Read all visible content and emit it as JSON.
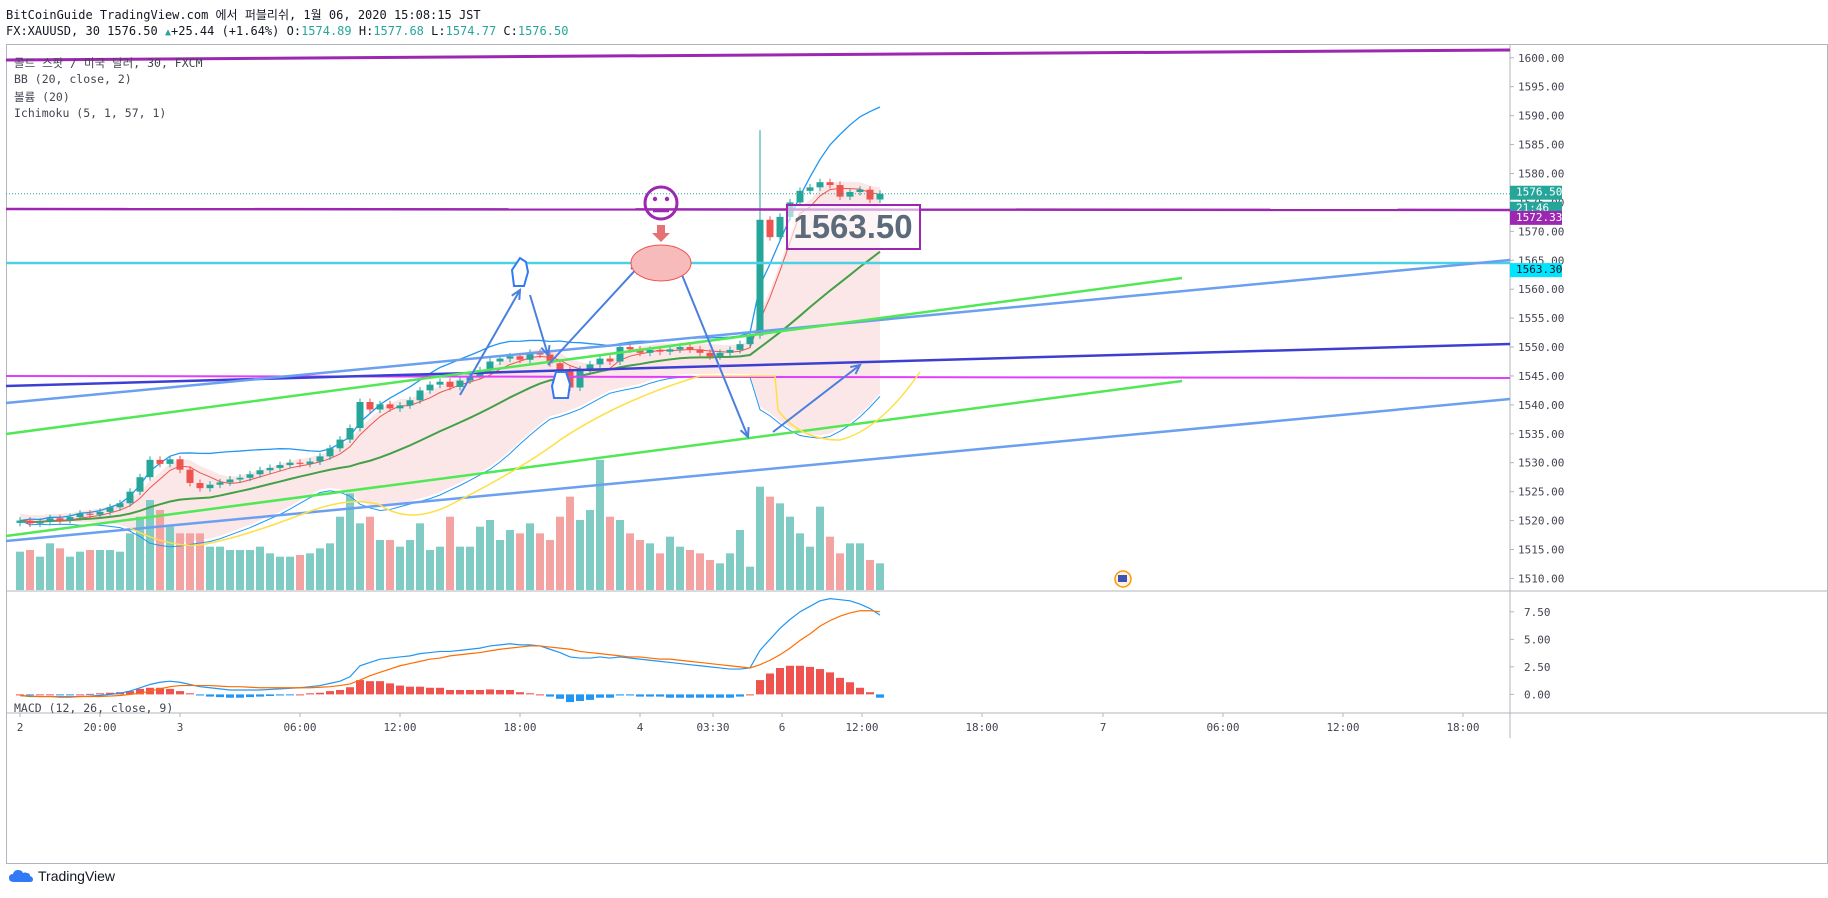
{
  "header": {
    "line1": "BitCoinGuide TradingView.com 에서 퍼블리쉬, 1월 06, 2020 15:08:15 JST",
    "symbol": "FX:XAUUSD, 30",
    "last": "1576.50",
    "change": "+25.44 (+1.64%)",
    "o_label": "O:",
    "o": "1574.89",
    "h_label": "H:",
    "h": "1577.68",
    "l_label": "L:",
    "l": "1574.77",
    "c_label": "C:",
    "c": "1576.50"
  },
  "legend": {
    "title": "골드 스팟 / 미국 달러, 30, FXCM",
    "bb": "BB (20, close, 2)",
    "volume": "볼륨 (20)",
    "ichimoku": "Ichimoku (5, 1, 57, 1)",
    "macd": "MACD (12, 26, close, 9)"
  },
  "badges": {
    "price": "1576.50",
    "countdown": "21:46",
    "level1": "1572.33",
    "level2": "1563.30"
  },
  "annotation_text": "1563.50",
  "logo_text": "TradingView",
  "colors": {
    "up": "#26a69a",
    "down": "#ef5350",
    "purple": "#9c27b0",
    "cyan": "#00bcd4",
    "blue": "#3179f5"
  },
  "chart_data": [
    {
      "type": "candlestick",
      "title": "골드 스팟 / 미국 달러, 30, FXCM",
      "ylim": [
        1508,
        1601
      ],
      "y_ticks": [
        1510,
        1515,
        1520,
        1525,
        1530,
        1535,
        1540,
        1545,
        1550,
        1555,
        1560,
        1565,
        1570,
        1575,
        1580,
        1585,
        1590,
        1595,
        1600
      ],
      "x_tick_labels": [
        "2",
        "20:00",
        "3",
        "06:00",
        "12:00",
        "18:00",
        "4",
        "03:30",
        "6",
        "12:00",
        "18:00",
        "7",
        "06:00",
        "12:00",
        "18:00"
      ],
      "close": [
        1520.0,
        1519.5,
        1519.8,
        1520.4,
        1520.1,
        1520.6,
        1521.2,
        1521.0,
        1521.5,
        1522.3,
        1523.0,
        1525.0,
        1527.5,
        1530.5,
        1529.8,
        1530.6,
        1528.8,
        1526.5,
        1525.6,
        1526.2,
        1526.6,
        1527.1,
        1527.4,
        1528.0,
        1528.7,
        1529.1,
        1529.6,
        1530.0,
        1529.8,
        1530.2,
        1531.1,
        1532.5,
        1534.0,
        1536.0,
        1540.5,
        1539.2,
        1540.1,
        1539.4,
        1539.9,
        1540.8,
        1542.5,
        1543.5,
        1544.0,
        1543.1,
        1544.2,
        1545.0,
        1546.0,
        1547.5,
        1548.0,
        1548.4,
        1547.8,
        1549.0,
        1548.7,
        1547.2,
        1546.0,
        1543.0,
        1546.1,
        1547.0,
        1548.0,
        1547.5,
        1550.0,
        1549.6,
        1549.0,
        1549.5,
        1549.2,
        1549.6,
        1550.0,
        1549.6,
        1549.0,
        1548.4,
        1549.0,
        1549.5,
        1550.5,
        1552.0,
        1572.0,
        1569.0,
        1572.5,
        1575.0,
        1577.0,
        1577.6,
        1578.5,
        1578.0,
        1576.0,
        1576.8,
        1577.2,
        1575.5,
        1576.5
      ],
      "volume": [
        11.5,
        12,
        10,
        14,
        12.5,
        10,
        11.5,
        12,
        12,
        12,
        11.5,
        17,
        22,
        27,
        24,
        19,
        17,
        17,
        17,
        13,
        13,
        12,
        12,
        12,
        13,
        11,
        10,
        10,
        10.5,
        11,
        12.5,
        14,
        22,
        29,
        20,
        22,
        15,
        15,
        13,
        15,
        20,
        12,
        13,
        22,
        13,
        13,
        19,
        21,
        15,
        18,
        17,
        20,
        17,
        15,
        22,
        28,
        21,
        24,
        39,
        22,
        21,
        17,
        15,
        14,
        11,
        16,
        13,
        12,
        11,
        9,
        8,
        11,
        18,
        7,
        31,
        28,
        26,
        22,
        17,
        13,
        25,
        16,
        11,
        14,
        14,
        9,
        8
      ]
    },
    {
      "type": "line",
      "title": "MACD (12, 26, close, 9)",
      "ylim": [
        -1.6,
        9.3
      ],
      "y_ticks": [
        0.0,
        2.5,
        5.0,
        7.5
      ],
      "macd": [
        -0.1,
        -0.2,
        -0.2,
        -0.2,
        -0.25,
        -0.25,
        -0.2,
        -0.15,
        -0.1,
        0.0,
        0.1,
        0.3,
        0.6,
        0.9,
        1.1,
        1.2,
        1.1,
        0.9,
        0.7,
        0.6,
        0.5,
        0.4,
        0.4,
        0.4,
        0.4,
        0.45,
        0.5,
        0.55,
        0.6,
        0.7,
        0.8,
        1.0,
        1.2,
        1.6,
        2.6,
        2.9,
        3.2,
        3.3,
        3.4,
        3.5,
        3.7,
        3.8,
        3.9,
        3.9,
        4.0,
        4.1,
        4.2,
        4.4,
        4.5,
        4.6,
        4.5,
        4.5,
        4.4,
        4.1,
        3.8,
        3.4,
        3.3,
        3.3,
        3.4,
        3.3,
        3.4,
        3.3,
        3.2,
        3.1,
        3.0,
        2.9,
        2.8,
        2.7,
        2.6,
        2.5,
        2.4,
        2.3,
        2.3,
        2.4,
        4.0,
        5.0,
        6.0,
        6.8,
        7.5,
        8.0,
        8.5,
        8.7,
        8.6,
        8.5,
        8.2,
        7.8,
        7.2
      ],
      "signal": [
        -0.1,
        -0.15,
        -0.2,
        -0.2,
        -0.2,
        -0.2,
        -0.2,
        -0.2,
        -0.2,
        -0.15,
        -0.1,
        0.0,
        0.1,
        0.3,
        0.5,
        0.7,
        0.8,
        0.8,
        0.8,
        0.8,
        0.75,
        0.7,
        0.7,
        0.65,
        0.6,
        0.6,
        0.6,
        0.6,
        0.6,
        0.6,
        0.65,
        0.7,
        0.8,
        0.95,
        1.3,
        1.7,
        2.0,
        2.3,
        2.6,
        2.8,
        3.0,
        3.2,
        3.3,
        3.5,
        3.6,
        3.7,
        3.8,
        3.95,
        4.1,
        4.2,
        4.3,
        4.4,
        4.4,
        4.3,
        4.2,
        4.1,
        3.9,
        3.8,
        3.7,
        3.6,
        3.5,
        3.4,
        3.4,
        3.3,
        3.2,
        3.2,
        3.1,
        3.0,
        2.9,
        2.8,
        2.7,
        2.6,
        2.5,
        2.4,
        2.7,
        3.1,
        3.6,
        4.2,
        4.9,
        5.5,
        6.2,
        6.7,
        7.1,
        7.4,
        7.6,
        7.6,
        7.5
      ],
      "histogram": [
        0.0,
        -0.05,
        0.0,
        0.0,
        -0.05,
        -0.05,
        0.0,
        0.05,
        0.1,
        0.15,
        0.2,
        0.3,
        0.5,
        0.6,
        0.6,
        0.5,
        0.3,
        0.1,
        -0.1,
        -0.2,
        -0.25,
        -0.3,
        -0.3,
        -0.25,
        -0.2,
        -0.15,
        -0.1,
        -0.05,
        0.0,
        0.1,
        0.15,
        0.3,
        0.4,
        0.65,
        1.3,
        1.2,
        1.2,
        1.0,
        0.8,
        0.7,
        0.7,
        0.6,
        0.6,
        0.4,
        0.4,
        0.4,
        0.4,
        0.45,
        0.4,
        0.4,
        0.2,
        0.1,
        0.0,
        -0.2,
        -0.4,
        -0.7,
        -0.6,
        -0.5,
        -0.3,
        -0.3,
        -0.1,
        -0.1,
        -0.2,
        -0.2,
        -0.2,
        -0.3,
        -0.3,
        -0.3,
        -0.3,
        -0.3,
        -0.3,
        -0.3,
        -0.2,
        0.0,
        1.3,
        1.9,
        2.4,
        2.6,
        2.6,
        2.5,
        2.3,
        2.0,
        1.5,
        1.1,
        0.6,
        0.2,
        -0.3
      ]
    }
  ]
}
